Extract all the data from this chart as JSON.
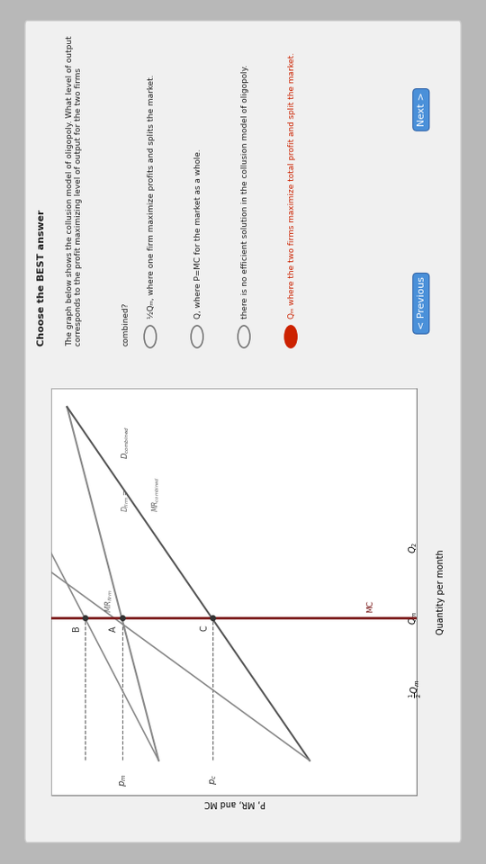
{
  "title": "Choose the BEST answer",
  "question_line1": "The graph below shows the collusion model of oligopoly. What level of output corresponds to the profit maximizing level of output for the two firms",
  "question_line2": "combined?",
  "ylabel": "P, MR, and MC",
  "xlabel": "Quantity per month",
  "outer_bg": "#b8b8b8",
  "device_bg": "#e8e8e8",
  "panel_bg": "#f0f0f0",
  "chart_bg": "#ffffff",
  "answer_options": [
    "½Qₘ, where one firm maximize profits and splits the market.",
    "Q, where P=MC for the market as a whole.",
    "there is no efficient solution in the collusion model of oligopoly.",
    "Qₘ where the two firms maximize total profit and split the market."
  ],
  "selected_option": 3,
  "nav_prev": "< Previous",
  "nav_next": "Next >",
  "mc_color": "#7b1a1a",
  "line_gray_dark": "#555555",
  "line_gray_mid": "#888888",
  "line_gray_light": "#aaaaaa",
  "dashed_color": "#666666",
  "selected_color": "#cc2200",
  "text_dark": "#222222",
  "text_mid": "#444444",
  "nav_btn_bg": "#4a90d9",
  "nav_btn_text": "#ffffff"
}
